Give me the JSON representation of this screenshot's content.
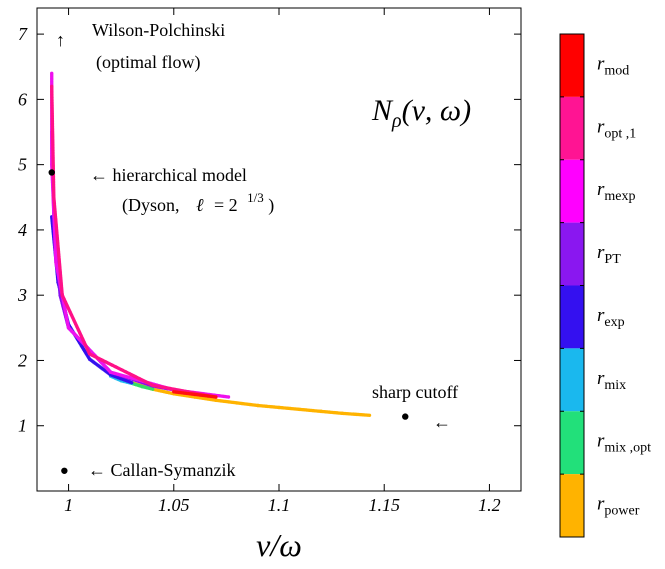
{
  "chart_data": {
    "type": "scatter",
    "title": "Nρ(ν, ω)",
    "xlabel": "ν/ω",
    "ylabel": "",
    "xlim": [
      0.985,
      1.215
    ],
    "ylim": [
      0.0,
      7.4
    ],
    "xticks": [
      1,
      1.05,
      1.1,
      1.15,
      1.2
    ],
    "xtick_labels": [
      "1",
      "1.05",
      "1.1",
      "1.15",
      "1.2"
    ],
    "yticks": [
      1,
      2,
      3,
      4,
      5,
      6,
      7
    ],
    "ytick_labels": [
      "1",
      "2",
      "3",
      "4",
      "5",
      "6",
      "7"
    ],
    "grid": false,
    "legend": "colorbar-right",
    "series": [
      {
        "name": "r_power",
        "color": "#FFB300",
        "x": [
          1.03,
          1.04,
          1.05,
          1.06,
          1.07,
          1.08,
          1.09,
          1.1,
          1.11,
          1.12,
          1.13,
          1.143
        ],
        "y": [
          1.66,
          1.56,
          1.49,
          1.44,
          1.39,
          1.35,
          1.31,
          1.28,
          1.25,
          1.22,
          1.19,
          1.16
        ]
      },
      {
        "name": "r_mix,opt",
        "color": "#33DD66",
        "x": [
          1.025,
          1.03,
          1.035,
          1.04
        ],
        "y": [
          1.7,
          1.65,
          1.6,
          1.56
        ]
      },
      {
        "name": "r_mix",
        "color": "#22BBEE",
        "x": [
          1.02,
          1.025,
          1.03
        ],
        "y": [
          1.76,
          1.69,
          1.65
        ]
      },
      {
        "name": "r_exp",
        "color": "#3311EE",
        "x": [
          0.992,
          0.995,
          1.0,
          1.01,
          1.02,
          1.03
        ],
        "y": [
          4.2,
          3.2,
          2.55,
          2.02,
          1.78,
          1.66
        ]
      },
      {
        "name": "r_PT",
        "color": "#8811EE",
        "x": [
          0.992,
          0.993,
          0.996,
          1.0,
          1.02,
          1.04,
          1.06
        ],
        "y": [
          5.5,
          4.2,
          3.0,
          2.5,
          1.82,
          1.61,
          1.49
        ]
      },
      {
        "name": "r_mexp",
        "color": "#EE11EE",
        "x": [
          0.992,
          0.992,
          0.994,
          1.0,
          1.02,
          1.05,
          1.076
        ],
        "y": [
          6.4,
          5.0,
          3.5,
          2.5,
          1.82,
          1.55,
          1.44
        ]
      },
      {
        "name": "r_opt,1",
        "color": "#FF1188",
        "x": [
          0.992,
          0.993,
          0.997,
          1.01,
          1.04,
          1.07
        ],
        "y": [
          6.2,
          4.5,
          3.0,
          2.1,
          1.62,
          1.44
        ]
      },
      {
        "name": "r_mod",
        "color": "#FF1111",
        "x": [
          1.05,
          1.06,
          1.07
        ],
        "y": [
          1.52,
          1.48,
          1.44
        ]
      }
    ],
    "markers": [
      {
        "x": 0.992,
        "y": 4.88
      },
      {
        "x": 1.16,
        "y": 1.14
      },
      {
        "x": 0.998,
        "y": 0.31
      }
    ],
    "annotations": {
      "wp_arrow": "↑",
      "wp_line1": "Wilson-Polchinski",
      "wp_line2": "(optimal flow)",
      "hier_line1": "← hierarchical model",
      "hier_line2_a": "(Dyson,",
      "hier_line2_ell": "ℓ",
      "hier_line2_b": "= 2",
      "hier_line2_exp": "1/3",
      "hier_line2_close": ")",
      "sharp": "sharp cutoff",
      "sharp_arrow": "←",
      "callan": "← Callan-Symanzik"
    },
    "title_parts": {
      "base": "N",
      "sub": "ρ",
      "args": "(ν, ω)"
    },
    "xlabel_text": "ν/ω",
    "colorbar": [
      {
        "base": "r",
        "sub": "mod",
        "color": "#FF0000"
      },
      {
        "base": "r",
        "sub": "opt ,1",
        "color": "#FF1493"
      },
      {
        "base": "r",
        "sub": "mexp",
        "color": "#FF00FF"
      },
      {
        "base": "r",
        "sub": "PT",
        "color": "#8A17F0"
      },
      {
        "base": "r",
        "sub": "exp",
        "color": "#3410F0"
      },
      {
        "base": "r",
        "sub": "mix",
        "color": "#1AB8EE"
      },
      {
        "base": "r",
        "sub": "mix ,opt",
        "color": "#22E07A"
      },
      {
        "base": "r",
        "sub": "power",
        "color": "#FFB300"
      }
    ]
  }
}
